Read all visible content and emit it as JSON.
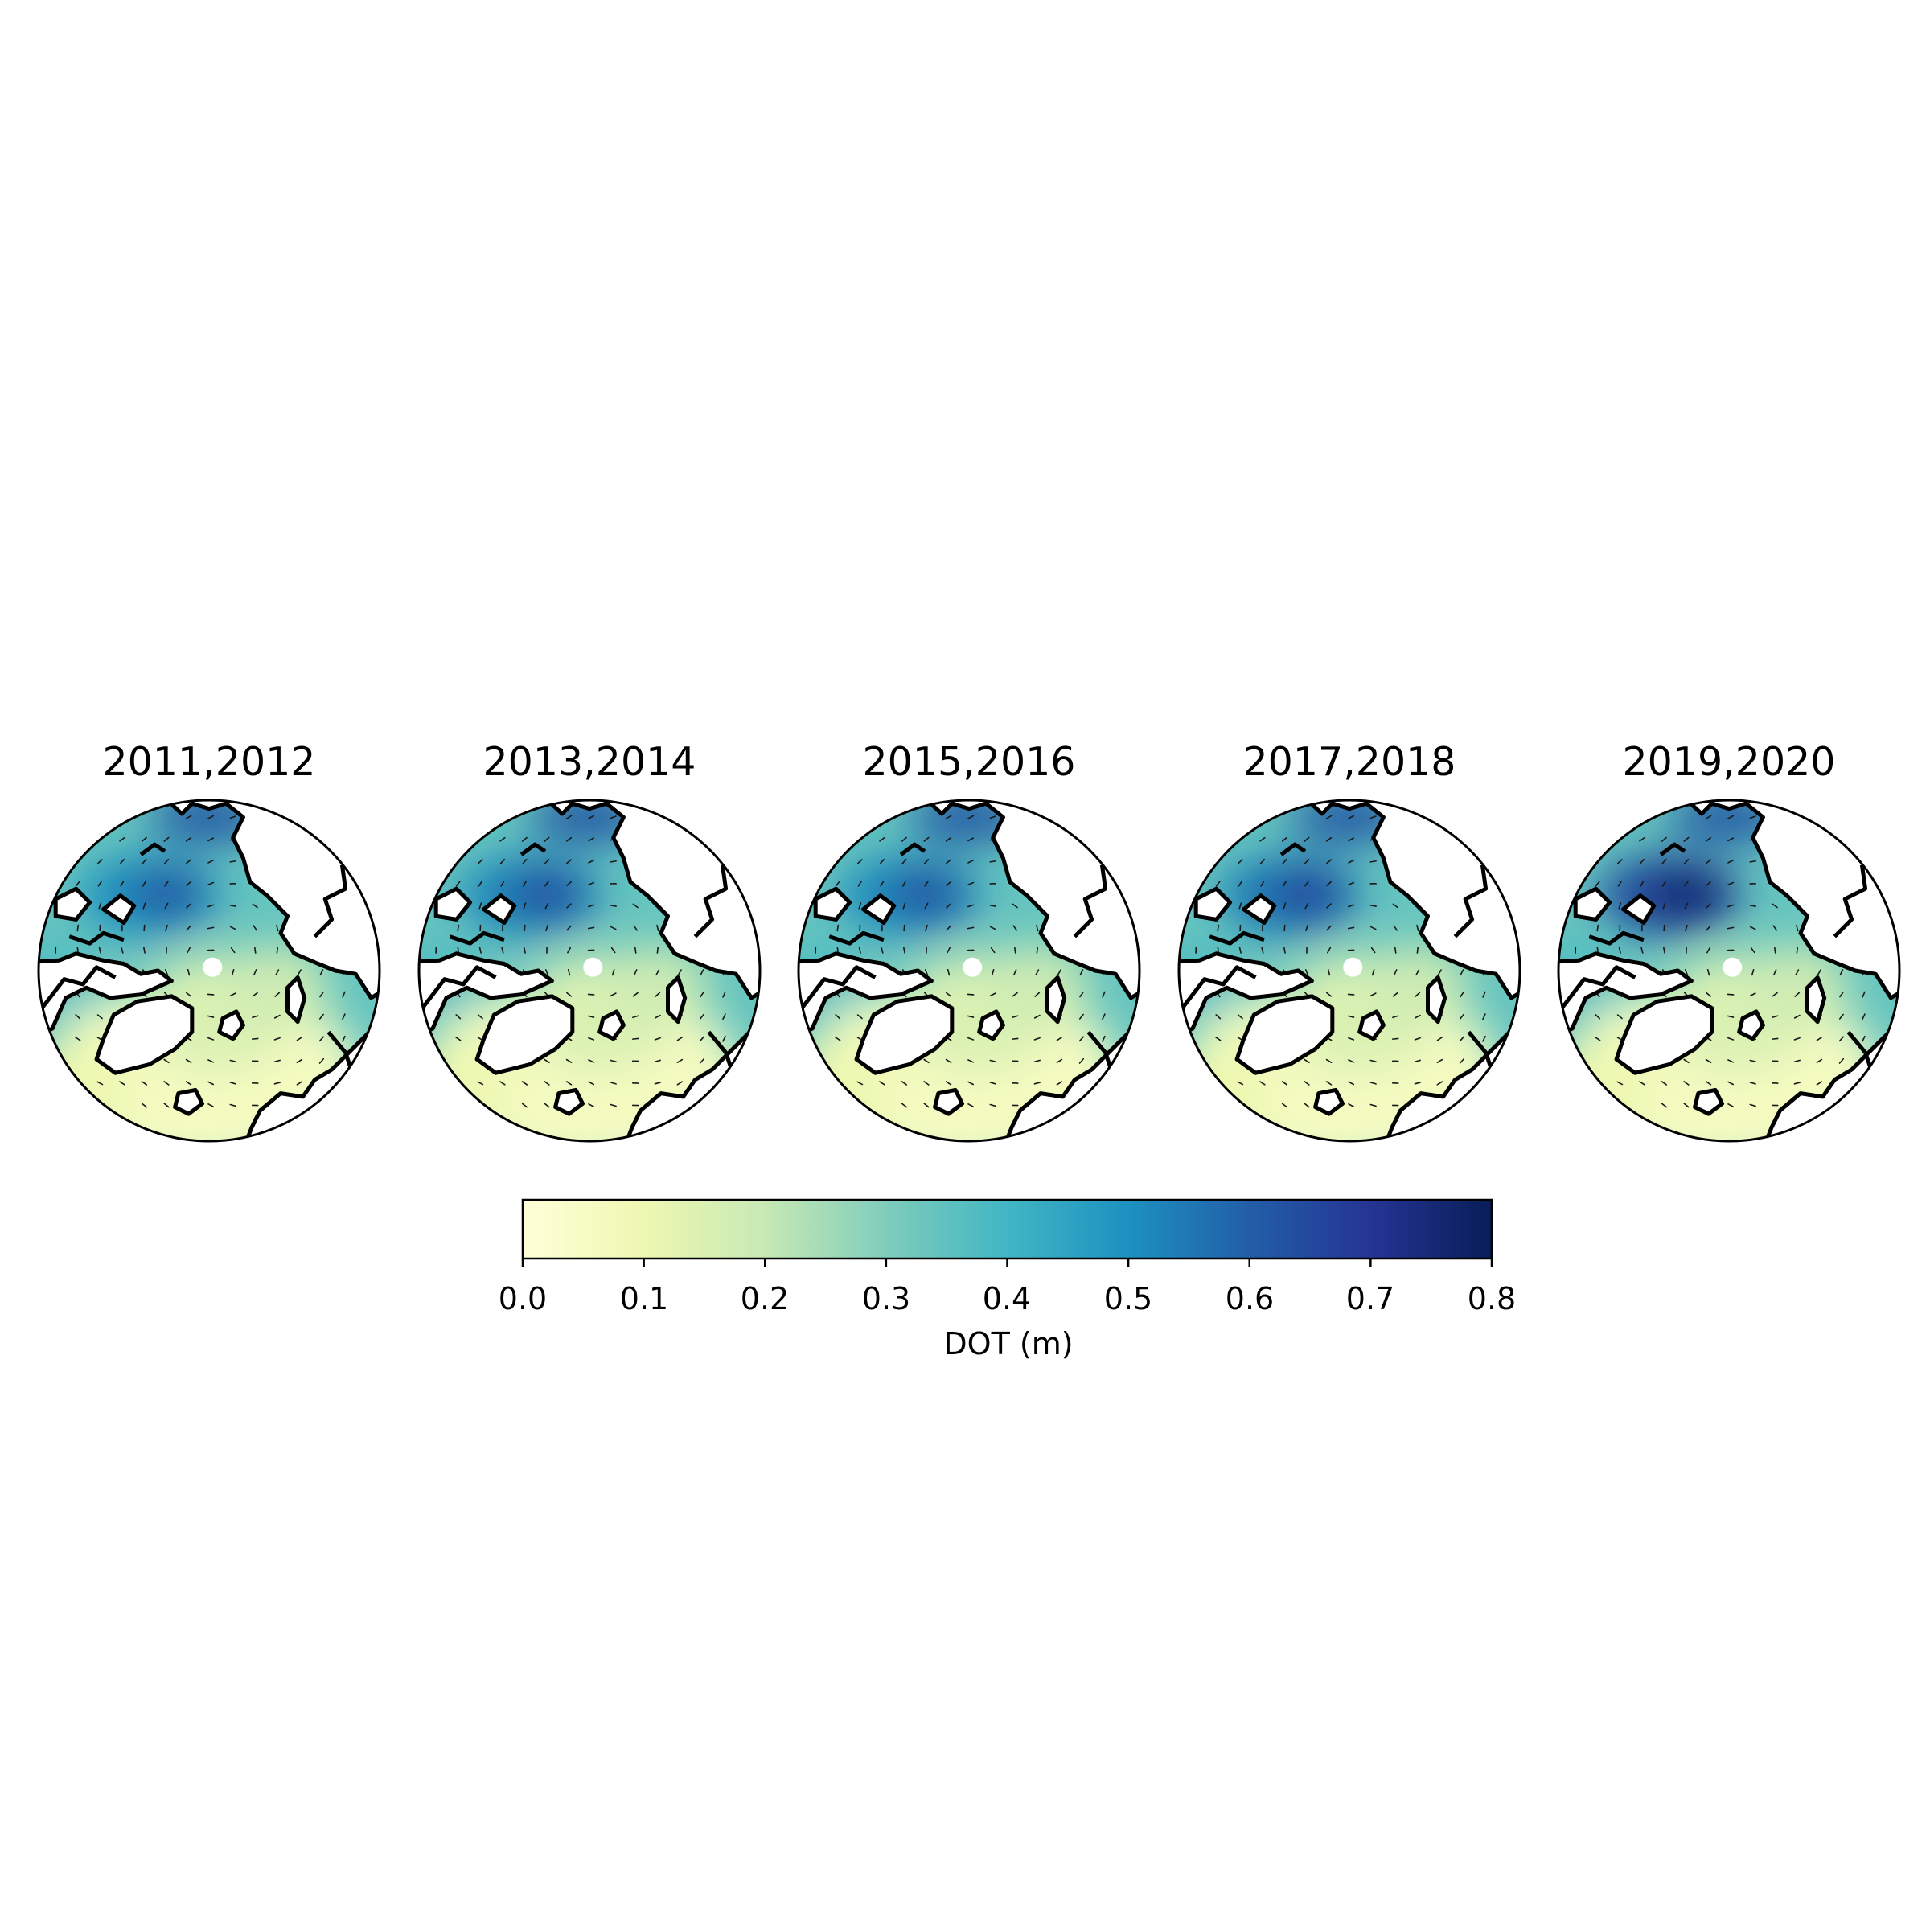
{
  "figure": {
    "panels": [
      {
        "title": "2011,2012",
        "gyre_strength": 0.62
      },
      {
        "title": "2013,2014",
        "gyre_strength": 0.64
      },
      {
        "title": "2015,2016",
        "gyre_strength": 0.63
      },
      {
        "title": "2017,2018",
        "gyre_strength": 0.66
      },
      {
        "title": "2019,2020",
        "gyre_strength": 0.76
      }
    ],
    "colormap": [
      "#ffffd9",
      "#edf8b1",
      "#c7e9b4",
      "#7fcdbb",
      "#41b6c4",
      "#1d91c0",
      "#225ea8",
      "#253494",
      "#081d58"
    ],
    "land_color": "#ffffff",
    "coastline_color": "#000000"
  },
  "colorbar": {
    "ticks": [
      "0.0",
      "0.1",
      "0.2",
      "0.3",
      "0.4",
      "0.5",
      "0.6",
      "0.7",
      "0.8"
    ],
    "label": "DOT (m)",
    "range": [
      0.0,
      0.8
    ]
  }
}
